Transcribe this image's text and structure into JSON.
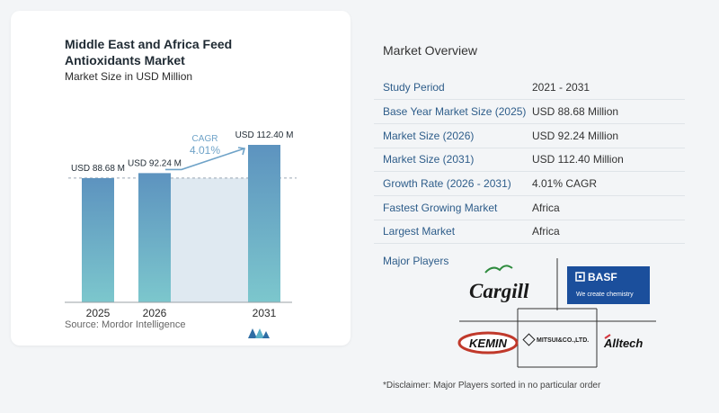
{
  "chart_data": {
    "type": "bar",
    "title": "Middle East and Africa Feed Antioxidants Market",
    "subtitle": "Market Size in USD Million",
    "categories": [
      "2025",
      "2026",
      "2031"
    ],
    "values": [
      88.68,
      92.24,
      112.4
    ],
    "data_labels": [
      "USD 88.68 M",
      "USD 92.24 M",
      "USD 112.40 M"
    ],
    "cagr_label": "CAGR",
    "cagr_value": "4.01%",
    "colors": {
      "bar_top": "#5d93bf",
      "bar_bottom": "#7cc7cd",
      "band": "#dfe9f1",
      "arrow": "#6fa3c8"
    },
    "source": "Source: Mordor Intelligence"
  },
  "overview": {
    "title": "Market Overview",
    "rows": [
      {
        "key": "Study Period",
        "value": "2021 - 2031"
      },
      {
        "key": "Base Year Market Size (2025)",
        "value": "USD 88.68 Million"
      },
      {
        "key": "Market Size (2026)",
        "value": "USD 92.24 Million"
      },
      {
        "key": "Market Size (2031)",
        "value": "USD 112.40 Million"
      },
      {
        "key": "Growth Rate (2026 - 2031)",
        "value": "4.01% CAGR"
      },
      {
        "key": "Fastest Growing Market",
        "value": "Africa"
      },
      {
        "key": "Largest Market",
        "value": "Africa"
      }
    ]
  },
  "players": {
    "label": "Major Players",
    "logos": {
      "cargill": "Cargill",
      "basf": "BASF",
      "basf_tagline": "We create chemistry",
      "kemin": "KEMIN",
      "mitsui": "MITSUI&CO.,LTD.",
      "alltech": "Alltech"
    }
  },
  "disclaimer": "*Disclaimer: Major Players sorted in no particular order"
}
